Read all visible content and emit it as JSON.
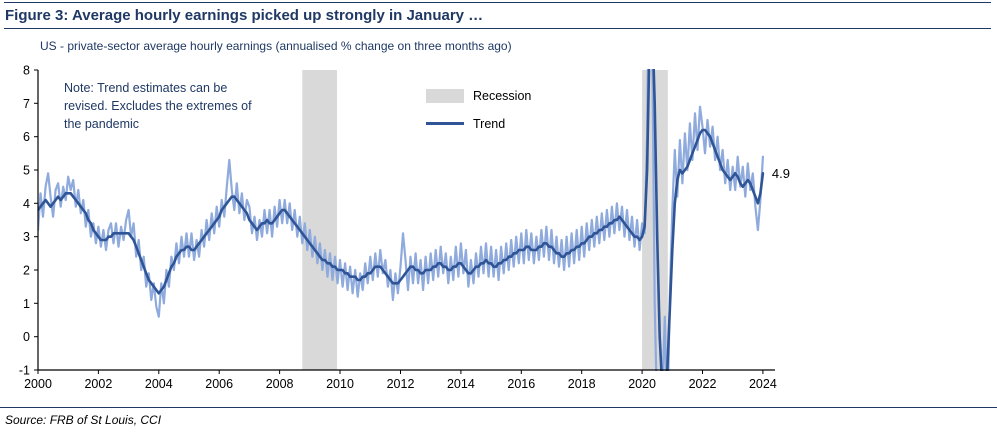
{
  "page": {
    "title": "Figure 3: Average hourly earnings picked up strongly in January …",
    "subtitle": "US - private-sector average hourly earnings (annualised % change on three months ago)",
    "note": "Note: Trend estimates can be revised. Excludes the extremes of the pandemic",
    "source": "Source: FRB of St Louis, CCI"
  },
  "legend": {
    "recession_label": "Recession",
    "trend_label": "Trend"
  },
  "colors": {
    "navy_text": "#1F3864",
    "trend_line": "#2F5597",
    "actual_line": "#8FAADC",
    "recession_band": "#D9D9D9",
    "axis": "#000000"
  },
  "chart_data": {
    "type": "line",
    "title": "US - private-sector average hourly earnings (annualised % change on three months ago)",
    "xlabel": "",
    "ylabel": "",
    "xlim": [
      2000,
      2024.4
    ],
    "ylim": [
      -1,
      8
    ],
    "yticks": [
      -1,
      0,
      1,
      2,
      3,
      4,
      5,
      6,
      7,
      8
    ],
    "xticks": [
      2000,
      2002,
      2004,
      2006,
      2008,
      2010,
      2012,
      2014,
      2016,
      2018,
      2020,
      2022,
      2024
    ],
    "grid": false,
    "legend_position": "inside-top-center",
    "legend_entries": [
      "Recession",
      "Trend"
    ],
    "band_color": "#D9D9D9",
    "recession_bands": [
      {
        "from": 2008.75,
        "to": 2009.9
      },
      {
        "from": 2020.0,
        "to": 2020.85
      }
    ],
    "x_start": 2000,
    "x_step_months": 1,
    "end_label": {
      "text": "4.9",
      "x": 2024.0,
      "y": 4.9
    },
    "series": [
      {
        "name": "3m annualised % change",
        "color": "#8FAADC",
        "width": 2.2,
        "values": [
          3.2,
          4.3,
          3.6,
          4.5,
          4.9,
          4.2,
          3.6,
          4.4,
          4.6,
          3.9,
          4.5,
          4.1,
          4.8,
          4.4,
          4.7,
          3.9,
          4.4,
          3.7,
          4.1,
          3.3,
          3.8,
          3.0,
          3.4,
          2.8,
          3.3,
          2.7,
          3.2,
          2.6,
          3.2,
          3.4,
          2.8,
          3.4,
          2.7,
          3.3,
          2.9,
          3.5,
          3.8,
          3.0,
          3.4,
          2.4,
          2.9,
          2.0,
          2.4,
          1.5,
          1.9,
          1.1,
          1.6,
          0.9,
          0.6,
          1.6,
          1.0,
          2.0,
          1.5,
          2.4,
          2.0,
          2.8,
          2.2,
          3.0,
          2.4,
          3.1,
          2.4,
          3.1,
          2.3,
          2.9,
          2.4,
          3.2,
          2.7,
          3.5,
          2.9,
          3.7,
          3.1,
          3.9,
          3.3,
          4.1,
          3.6,
          4.5,
          5.3,
          4.4,
          3.8,
          4.6,
          3.7,
          4.3,
          3.5,
          4.1,
          3.9,
          3.1,
          3.6,
          2.9,
          3.5,
          3.0,
          3.8,
          3.1,
          3.8,
          3.0,
          3.9,
          3.3,
          4.1,
          3.4,
          4.1,
          3.4,
          4.0,
          3.2,
          3.8,
          3.0,
          3.6,
          2.8,
          3.4,
          2.6,
          3.2,
          2.4,
          3.0,
          2.2,
          2.8,
          2.0,
          2.6,
          1.8,
          2.5,
          1.7,
          2.4,
          1.6,
          2.3,
          1.5,
          2.2,
          1.4,
          2.1,
          1.3,
          2.0,
          1.2,
          1.9,
          1.4,
          2.2,
          1.6,
          2.4,
          1.7,
          2.5,
          1.8,
          2.6,
          1.9,
          2.3,
          1.5,
          2.0,
          1.1,
          1.9,
          1.3,
          2.1,
          3.1,
          2.3,
          1.4,
          2.4,
          1.6,
          2.5,
          1.6,
          2.3,
          1.4,
          2.4,
          1.6,
          2.5,
          1.7,
          2.6,
          1.8,
          2.7,
          1.9,
          2.5,
          1.6,
          2.4,
          1.7,
          2.7,
          1.8,
          2.8,
          1.9,
          2.6,
          1.5,
          2.3,
          1.6,
          2.5,
          1.8,
          2.7,
          1.9,
          2.8,
          1.8,
          2.7,
          1.8,
          2.6,
          1.7,
          2.7,
          1.9,
          2.8,
          2.0,
          2.9,
          2.1,
          3.0,
          2.2,
          3.1,
          2.2,
          3.2,
          2.3,
          3.1,
          2.2,
          3.0,
          2.3,
          3.2,
          2.4,
          3.3,
          2.3,
          3.2,
          2.2,
          3.0,
          2.1,
          2.9,
          2.0,
          3.0,
          2.1,
          3.1,
          2.2,
          3.2,
          2.3,
          3.3,
          2.4,
          3.4,
          2.6,
          3.5,
          2.7,
          3.6,
          2.8,
          3.7,
          2.9,
          3.8,
          3.0,
          3.9,
          3.1,
          4.0,
          3.2,
          3.9,
          3.0,
          3.8,
          2.9,
          3.6,
          2.7,
          3.5,
          2.6,
          3.4,
          3.1,
          6.0,
          13.0,
          9.0,
          1.0,
          -2.5,
          -3.5,
          -1.8,
          0.6,
          -2.8,
          1.2,
          3.8,
          5.6,
          4.2,
          5.9,
          4.6,
          6.1,
          5.0,
          6.4,
          5.3,
          6.7,
          5.6,
          6.9,
          6.3,
          5.5,
          6.5,
          5.7,
          6.3,
          5.3,
          6.0,
          5.0,
          5.6,
          4.6,
          5.3,
          4.4,
          5.1,
          4.4,
          5.4,
          4.5,
          5.1,
          4.2,
          5.2,
          4.4,
          4.9,
          3.9,
          3.2,
          4.1,
          5.4
        ]
      },
      {
        "name": "Trend",
        "color": "#2F5597",
        "width": 2.6,
        "values": [
          3.8,
          3.9,
          4.0,
          4.1,
          4.0,
          3.9,
          4.0,
          4.1,
          4.2,
          4.1,
          4.2,
          4.3,
          4.3,
          4.3,
          4.2,
          4.1,
          4.0,
          3.9,
          3.8,
          3.7,
          3.5,
          3.4,
          3.2,
          3.1,
          3.0,
          2.9,
          2.9,
          2.9,
          3.0,
          3.0,
          3.1,
          3.1,
          3.1,
          3.1,
          3.1,
          3.1,
          3.1,
          3.0,
          2.9,
          2.7,
          2.5,
          2.3,
          2.1,
          1.9,
          1.7,
          1.6,
          1.5,
          1.4,
          1.3,
          1.4,
          1.5,
          1.7,
          1.9,
          2.1,
          2.2,
          2.4,
          2.5,
          2.6,
          2.6,
          2.7,
          2.7,
          2.6,
          2.6,
          2.7,
          2.8,
          2.9,
          3.0,
          3.1,
          3.2,
          3.3,
          3.4,
          3.5,
          3.6,
          3.8,
          3.9,
          4.0,
          4.1,
          4.2,
          4.2,
          4.1,
          4.0,
          3.9,
          3.8,
          3.7,
          3.5,
          3.4,
          3.3,
          3.2,
          3.3,
          3.4,
          3.4,
          3.5,
          3.4,
          3.4,
          3.5,
          3.6,
          3.7,
          3.8,
          3.8,
          3.7,
          3.6,
          3.5,
          3.4,
          3.3,
          3.2,
          3.1,
          3.0,
          2.9,
          2.8,
          2.7,
          2.6,
          2.5,
          2.4,
          2.3,
          2.3,
          2.2,
          2.2,
          2.1,
          2.1,
          2.0,
          2.0,
          2.0,
          1.9,
          1.9,
          1.8,
          1.8,
          1.8,
          1.7,
          1.7,
          1.8,
          1.8,
          1.9,
          1.9,
          2.0,
          2.1,
          2.1,
          2.1,
          2.0,
          1.9,
          1.8,
          1.7,
          1.6,
          1.6,
          1.6,
          1.7,
          1.8,
          1.9,
          2.0,
          2.1,
          2.1,
          2.0,
          2.0,
          1.9,
          1.9,
          2.0,
          2.0,
          2.0,
          2.1,
          2.1,
          2.2,
          2.2,
          2.1,
          2.1,
          2.0,
          2.0,
          2.1,
          2.1,
          2.2,
          2.2,
          2.1,
          2.0,
          1.9,
          1.9,
          2.0,
          2.1,
          2.1,
          2.2,
          2.2,
          2.3,
          2.2,
          2.2,
          2.1,
          2.1,
          2.2,
          2.2,
          2.3,
          2.3,
          2.4,
          2.4,
          2.5,
          2.5,
          2.6,
          2.6,
          2.6,
          2.7,
          2.7,
          2.6,
          2.6,
          2.6,
          2.7,
          2.7,
          2.8,
          2.8,
          2.7,
          2.7,
          2.6,
          2.5,
          2.5,
          2.4,
          2.4,
          2.5,
          2.5,
          2.6,
          2.6,
          2.7,
          2.7,
          2.8,
          2.8,
          2.9,
          3.0,
          3.0,
          3.1,
          3.1,
          3.2,
          3.2,
          3.3,
          3.3,
          3.4,
          3.4,
          3.5,
          3.5,
          3.6,
          3.5,
          3.4,
          3.3,
          3.2,
          3.1,
          3.0,
          3.0,
          2.9,
          3.0,
          3.3,
          5.0,
          9.0,
          9.5,
          7.0,
          3.0,
          0.0,
          -1.5,
          -1.8,
          -1.0,
          0.8,
          2.6,
          4.0,
          4.7,
          5.0,
          4.9,
          5.0,
          5.1,
          5.3,
          5.5,
          5.7,
          5.9,
          6.1,
          6.2,
          6.2,
          6.1,
          6.0,
          5.8,
          5.6,
          5.4,
          5.2,
          5.0,
          4.9,
          4.8,
          4.7,
          4.8,
          4.9,
          4.8,
          4.6,
          4.5,
          4.6,
          4.7,
          4.6,
          4.4,
          4.2,
          4.0,
          4.3,
          4.9
        ]
      }
    ]
  }
}
